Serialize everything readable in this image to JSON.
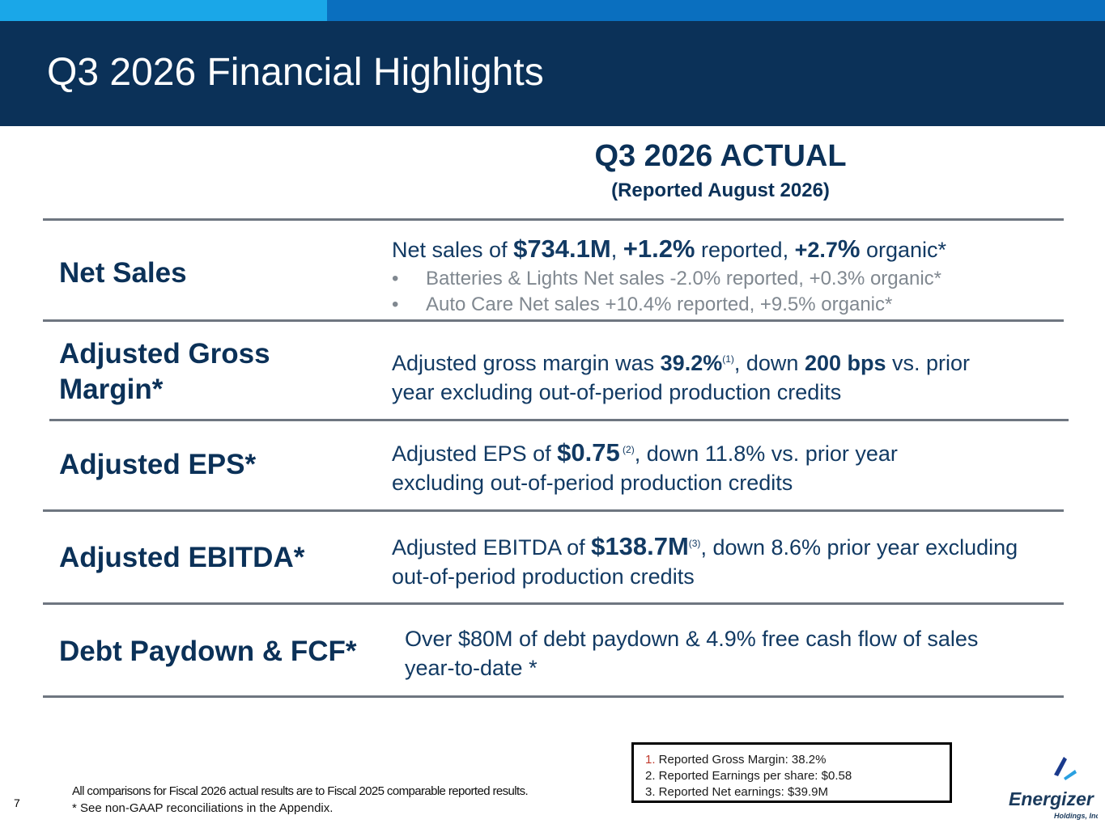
{
  "slide": {
    "title": "Q3 2026 Financial Highlights",
    "page_number": "7"
  },
  "column_header": {
    "title": "Q3 2026 ACTUAL",
    "subtitle": "(Reported August 2026)"
  },
  "rows": [
    {
      "label": "Net Sales",
      "text_1": "Net sales of ",
      "bold_1": "$734.1M",
      "text_2": ", ",
      "bold_2": "+1.2%",
      "text_3": " reported, ",
      "bold_3": "+2.7",
      "bold_4": "%",
      "text_4": " organic*",
      "bullets": [
        "Batteries & Lights Net sales -2.0% reported, +0.3% organic*",
        "Auto Care Net sales +10.4% reported, +9.5% organic*"
      ],
      "bullet_glyph": "•"
    },
    {
      "label_line1": "Adjusted Gross",
      "label_line2": "Margin*",
      "text_1": "Adjusted gross margin was ",
      "bold_1": "39.2%",
      "sup_1": "(1)",
      "text_2": ", down ",
      "bold_2": "200 bps",
      "text_3": " vs. prior",
      "line2": "year excluding out-of-period production credits"
    },
    {
      "label": "Adjusted EPS*",
      "text_1": "Adjusted EPS of ",
      "bold_1": "$0.75",
      "sup_1": " (2)",
      "text_2": ", down 11.8% vs. prior year",
      "line2": "excluding out-of-period production credits"
    },
    {
      "label": "Adjusted EBITDA*",
      "text_1": "Adjusted EBITDA of ",
      "bold_1": "$138.7M",
      "sup_1": "(3)",
      "text_2": ", down 8.6% prior year excluding",
      "line2": "out-of-period production credits"
    },
    {
      "label": "Debt Paydown & FCF*",
      "line1": "Over $80M of debt paydown & 4.9% free cash flow of sales",
      "line2": "year-to-date *"
    }
  ],
  "footnotes": {
    "items": [
      {
        "num": "1.",
        "text": " Reported Gross Margin: 38.2%"
      },
      {
        "num": "2.",
        "text": " Reported Earnings per share: $0.58"
      },
      {
        "num": "3.",
        "text": " Reported Net earnings: $39.9M"
      }
    ]
  },
  "footer": {
    "line1": "All comparisons for Fiscal 2026 actual results are to Fiscal 2025 comparable reported results.",
    "line2": "* See non-GAAP reconciliations in the Appendix."
  },
  "logo": {
    "brand": "Energizer",
    "sub": "Holdings, Inc.",
    "colors": {
      "mark_dark": "#1a3a8c",
      "mark_light": "#2aa0e0"
    }
  }
}
